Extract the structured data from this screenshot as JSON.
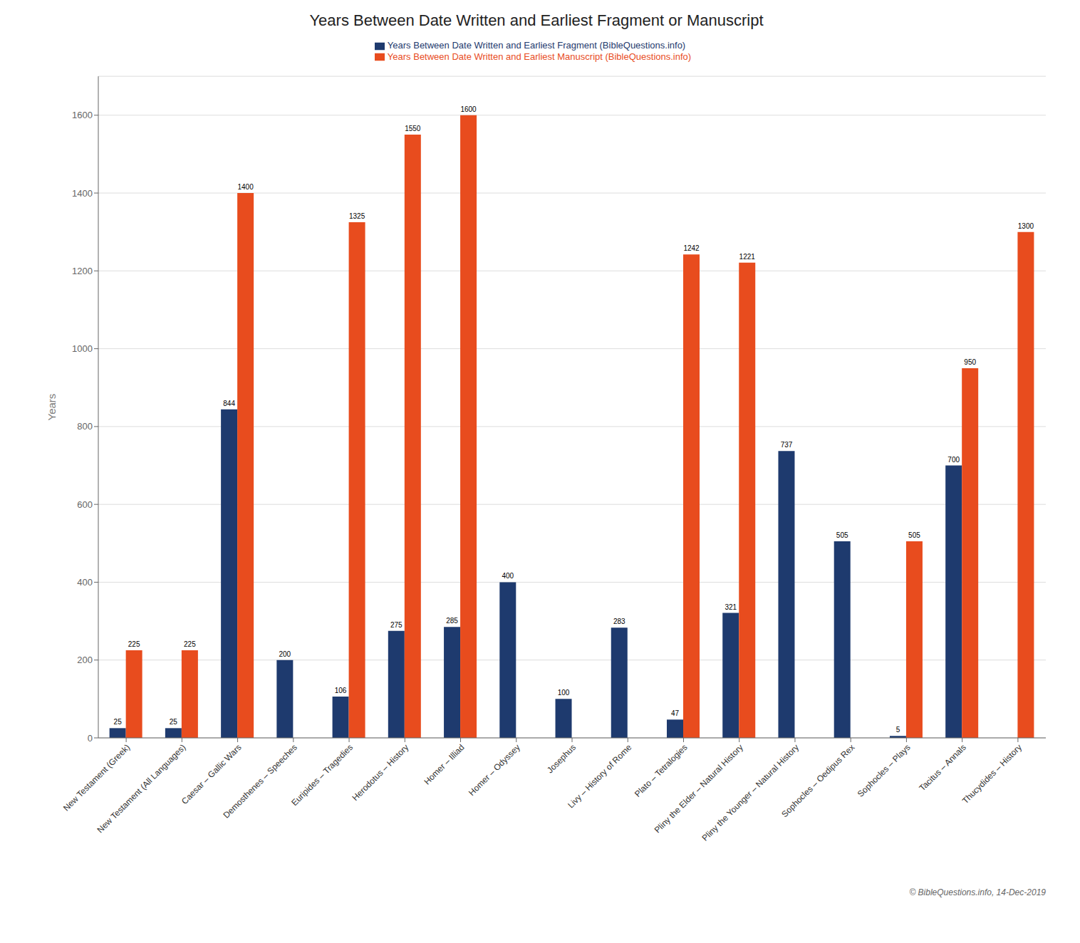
{
  "chart_data": {
    "type": "bar",
    "title": "Years Between Date Written and Earliest Fragment or Manuscript",
    "ylabel": "Years",
    "categories": [
      "New Testament (Greek)",
      "New Testament (All Languages)",
      "Caesar – Gallic Wars",
      "Demosthenes – Speeches",
      "Euripides – Tragedies",
      "Herodotus – History",
      "Homer – Illiad",
      "Homer – Odyssey",
      "Josephus",
      "Livy – History of Rome",
      "Plato – Tetralogies",
      "Pliny the Elder – Natural History",
      "Pliny the Younger – Natural History",
      "Sophocles – Oedipus Rex",
      "Sophocles – Plays",
      "Tacitus – Annals",
      "Thucydides – History"
    ],
    "series": [
      {
        "name": "Years Between Date Written and Earliest Fragment (BibleQuestions.info)",
        "color": "#1e3a6e",
        "values": [
          25,
          25,
          844,
          200,
          106,
          275,
          285,
          400,
          100,
          283,
          47,
          321,
          737,
          505,
          5,
          700,
          0
        ]
      },
      {
        "name": "Years Between Date Written and Earliest Manuscript (BibleQuestions.info)",
        "color": "#e84c1e",
        "values": [
          225,
          225,
          1400,
          0,
          1325,
          1550,
          1600,
          0,
          0,
          0,
          1242,
          1221,
          0,
          0,
          505,
          950,
          1300
        ]
      }
    ],
    "ylim": [
      0,
      1700
    ],
    "yticks": [
      0,
      200,
      400,
      600,
      800,
      1000,
      1200,
      1400,
      1600
    ],
    "grid": true,
    "legend": "top",
    "data_labels": true,
    "annotations": [
      "© BibleQuestions.info, 14-Dec-2019"
    ]
  }
}
